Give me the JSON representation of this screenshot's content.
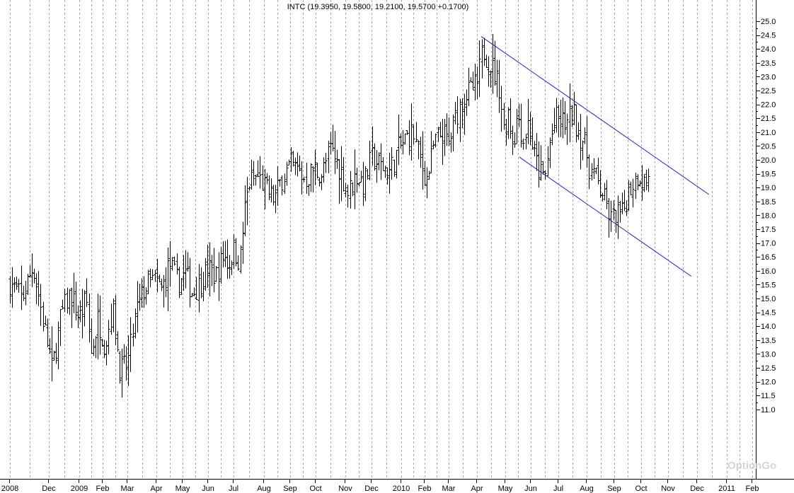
{
  "chart_data": {
    "type": "ohlc",
    "title": "INTC (19.3950, 19.5800, 19.2100, 19.5700 +0.1700)",
    "watermark": "OptionGo",
    "y_axis": {
      "position": "right",
      "min": 11.0,
      "max": 25.0,
      "step": 0.5
    },
    "y_ticks": [
      "25.0",
      "24.5",
      "24.0",
      "23.5",
      "23.0",
      "22.5",
      "22.0",
      "21.5",
      "21.0",
      "20.5",
      "20.0",
      "19.5",
      "19.0",
      "18.5",
      "18.0",
      "17.5",
      "17.0",
      "16.5",
      "16.0",
      "15.5",
      "15.0",
      "14.5",
      "14.0",
      "13.5",
      "13.0",
      "12.5",
      "12.0",
      "11.5",
      "11.0"
    ],
    "x_ticks": [
      {
        "label": "2008",
        "pos": 0
      },
      {
        "label": "Dec",
        "pos": 1
      },
      {
        "label": "2009",
        "pos": 2
      },
      {
        "label": "Feb",
        "pos": 3
      },
      {
        "label": "Mar",
        "pos": 4
      },
      {
        "label": "Apr",
        "pos": 5
      },
      {
        "label": "May",
        "pos": 6
      },
      {
        "label": "Jun",
        "pos": 7
      },
      {
        "label": "Jul",
        "pos": 8
      },
      {
        "label": "Aug",
        "pos": 9
      },
      {
        "label": "Sep",
        "pos": 10
      },
      {
        "label": "Oct",
        "pos": 11
      },
      {
        "label": "Nov",
        "pos": 12
      },
      {
        "label": "Dec",
        "pos": 13
      },
      {
        "label": "2010",
        "pos": 14
      },
      {
        "label": "Feb",
        "pos": 15
      },
      {
        "label": "Mar",
        "pos": 16
      },
      {
        "label": "Apr",
        "pos": 17
      },
      {
        "label": "May",
        "pos": 18
      },
      {
        "label": "Jun",
        "pos": 19
      },
      {
        "label": "Jul",
        "pos": 20
      },
      {
        "label": "Aug",
        "pos": 21
      },
      {
        "label": "Sep",
        "pos": 22
      },
      {
        "label": "Oct",
        "pos": 23
      },
      {
        "label": "Nov",
        "pos": 24
      },
      {
        "label": "Dec",
        "pos": 25
      },
      {
        "label": "2011",
        "pos": 26
      },
      {
        "label": "Feb",
        "pos": 27
      }
    ],
    "price_path": [
      [
        0.0,
        15.6
      ],
      [
        0.3,
        15.0
      ],
      [
        0.6,
        16.2
      ],
      [
        0.9,
        13.8
      ],
      [
        1.1,
        12.4
      ],
      [
        1.4,
        14.4
      ],
      [
        1.7,
        15.2
      ],
      [
        2.0,
        14.3
      ],
      [
        2.3,
        15.0
      ],
      [
        2.5,
        13.0
      ],
      [
        2.8,
        14.3
      ],
      [
        3.1,
        13.3
      ],
      [
        3.4,
        14.7
      ],
      [
        3.7,
        12.4
      ],
      [
        4.0,
        12.6
      ],
      [
        4.3,
        14.5
      ],
      [
        4.6,
        15.4
      ],
      [
        4.9,
        15.7
      ],
      [
        5.2,
        15.3
      ],
      [
        5.5,
        16.3
      ],
      [
        5.8,
        15.6
      ],
      [
        6.1,
        15.9
      ],
      [
        6.4,
        15.2
      ],
      [
        6.7,
        15.6
      ],
      [
        7.0,
        16.1
      ],
      [
        7.3,
        15.8
      ],
      [
        7.6,
        16.6
      ],
      [
        7.8,
        16.2
      ],
      [
        8.0,
        16.8
      ],
      [
        8.2,
        16.3
      ],
      [
        8.35,
        18.1
      ],
      [
        8.5,
        19.2
      ],
      [
        8.8,
        19.4
      ],
      [
        9.1,
        18.9
      ],
      [
        9.4,
        18.6
      ],
      [
        9.7,
        19.4
      ],
      [
        10.0,
        19.8
      ],
      [
        10.3,
        19.6
      ],
      [
        10.6,
        19.3
      ],
      [
        10.9,
        19.7
      ],
      [
        11.2,
        19.5
      ],
      [
        11.5,
        20.4
      ],
      [
        11.8,
        19.7
      ],
      [
        12.1,
        18.8
      ],
      [
        12.4,
        19.5
      ],
      [
        12.7,
        19.1
      ],
      [
        13.0,
        20.1
      ],
      [
        13.3,
        19.8
      ],
      [
        13.6,
        19.6
      ],
      [
        13.9,
        20.4
      ],
      [
        14.2,
        20.8
      ],
      [
        14.5,
        21.0
      ],
      [
        14.8,
        20.0
      ],
      [
        15.1,
        19.3
      ],
      [
        15.4,
        20.6
      ],
      [
        15.7,
        21.0
      ],
      [
        16.0,
        20.6
      ],
      [
        16.2,
        21.4
      ],
      [
        16.5,
        22.3
      ],
      [
        16.8,
        22.5
      ],
      [
        17.0,
        22.7
      ],
      [
        17.2,
        24.0
      ],
      [
        17.4,
        23.6
      ],
      [
        17.6,
        23.2
      ],
      [
        17.8,
        22.6
      ],
      [
        17.95,
        21.0
      ],
      [
        18.1,
        21.8
      ],
      [
        18.3,
        20.6
      ],
      [
        18.5,
        21.7
      ],
      [
        18.7,
        20.7
      ],
      [
        18.9,
        21.4
      ],
      [
        19.1,
        20.2
      ],
      [
        19.3,
        19.6
      ],
      [
        19.5,
        19.3
      ],
      [
        19.7,
        20.7
      ],
      [
        19.9,
        21.5
      ],
      [
        20.1,
        21.4
      ],
      [
        20.3,
        21.3
      ],
      [
        20.5,
        21.8
      ],
      [
        20.7,
        21.0
      ],
      [
        20.9,
        20.7
      ],
      [
        21.1,
        19.7
      ],
      [
        21.3,
        19.4
      ],
      [
        21.5,
        18.9
      ],
      [
        21.7,
        18.4
      ],
      [
        21.9,
        17.8
      ],
      [
        22.1,
        18.1
      ],
      [
        22.3,
        18.0
      ],
      [
        22.5,
        18.8
      ],
      [
        22.7,
        19.2
      ],
      [
        22.9,
        19.5
      ],
      [
        23.1,
        19.2
      ],
      [
        23.3,
        19.4
      ]
    ],
    "channel": {
      "color": "#1f1fd6",
      "upper": {
        "from": [
          17.15,
          24.45
        ],
        "to": [
          25.4,
          18.75
        ]
      },
      "lower": {
        "from": [
          18.55,
          20.1
        ],
        "to": [
          24.8,
          15.8
        ]
      }
    }
  }
}
